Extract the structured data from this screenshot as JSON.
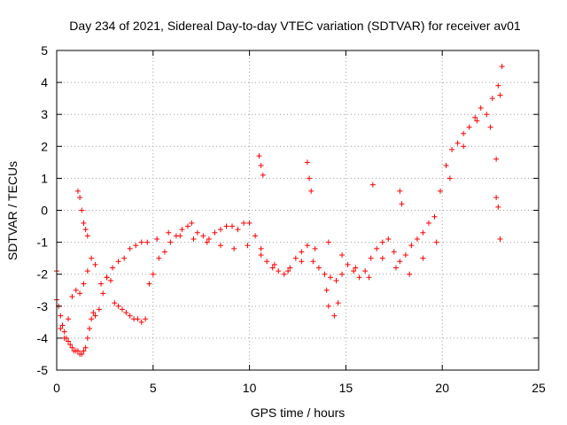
{
  "chart_data": {
    "type": "scatter",
    "title": "Day 234 of 2021, Sidereal Day-to-day VTEC variation (SDTVAR) for receiver av01",
    "xlabel": "GPS time / hours",
    "ylabel": "SDTVAR / TECUs",
    "xlim": [
      0,
      25
    ],
    "ylim": [
      -5,
      5
    ],
    "x_ticks": [
      0,
      5,
      10,
      15,
      20,
      25
    ],
    "x_tick_labels": [
      "0",
      "5",
      "10",
      "15",
      "20",
      "25"
    ],
    "y_ticks": [
      -5,
      -4,
      -3,
      -2,
      -1,
      0,
      1,
      2,
      3,
      4,
      5
    ],
    "y_tick_labels": [
      "-5",
      "-4",
      "-3",
      "-2",
      "-1",
      "0",
      "1",
      "2",
      "3",
      "4",
      "5"
    ],
    "grid": true,
    "marker": "+",
    "color": "#ff0000",
    "series": [
      {
        "name": "SDTVAR",
        "x": [
          0.0,
          0.1,
          0.2,
          0.3,
          0.4,
          0.5,
          0.6,
          0.7,
          0.8,
          0.9,
          1.0,
          1.1,
          1.2,
          1.3,
          1.4,
          1.5,
          1.6,
          1.7,
          1.8,
          1.9,
          2.0,
          2.2,
          2.4,
          2.6,
          2.8,
          3.0,
          3.2,
          3.4,
          3.6,
          3.8,
          4.0,
          4.2,
          4.4,
          4.6,
          4.8,
          5.0,
          5.3,
          5.6,
          5.9,
          6.2,
          6.5,
          6.8,
          7.0,
          7.3,
          7.6,
          7.9,
          8.2,
          8.5,
          8.8,
          9.1,
          9.4,
          9.7,
          10.0,
          10.3,
          10.6,
          10.9,
          11.2,
          11.5,
          11.8,
          12.1,
          12.4,
          12.7,
          13.0,
          13.3,
          13.6,
          13.9,
          14.2,
          14.5,
          14.8,
          15.1,
          15.4,
          15.7,
          16.0,
          16.3,
          16.6,
          16.9,
          17.2,
          17.5,
          17.8,
          18.1,
          18.4,
          18.7,
          19.0,
          19.3,
          19.6,
          19.9,
          20.2,
          20.5,
          20.8,
          21.1,
          21.4,
          21.7,
          22.0,
          22.3,
          22.6,
          22.9,
          23.1,
          0.0,
          0.2,
          0.4,
          0.6,
          0.8,
          1.0,
          1.2,
          1.4,
          1.6,
          1.8,
          2.0,
          2.3,
          2.6,
          2.9,
          3.2,
          3.5,
          3.8,
          4.1,
          4.4,
          4.7,
          5.2,
          5.8,
          6.4,
          7.1,
          7.8,
          8.5,
          9.2,
          9.9,
          10.6,
          11.3,
          12.0,
          12.7,
          13.4,
          14.1,
          14.8,
          15.5,
          16.2,
          16.9,
          17.6,
          18.3,
          19.0,
          19.7,
          20.4,
          21.1,
          21.8,
          22.5,
          23.0,
          1.1,
          1.2,
          1.3,
          1.4,
          1.5,
          1.6,
          10.5,
          10.6,
          10.7,
          13.0,
          13.1,
          13.2,
          14.0,
          14.1,
          14.4,
          14.6,
          16.4,
          17.8,
          17.9,
          22.8,
          22.8,
          22.9,
          23.0
        ],
        "y": [
          -2.8,
          -3.0,
          -3.3,
          -3.6,
          -3.8,
          -4.0,
          -4.1,
          -4.2,
          -4.3,
          -4.4,
          -4.4,
          -4.4,
          -4.5,
          -4.5,
          -4.4,
          -4.3,
          -4.0,
          -3.7,
          -3.4,
          -3.2,
          -3.3,
          -3.1,
          -2.6,
          -2.1,
          -2.2,
          -2.9,
          -3.0,
          -3.1,
          -3.2,
          -3.3,
          -3.4,
          -3.4,
          -3.5,
          -3.4,
          -2.3,
          -2.0,
          -1.5,
          -1.3,
          -1.0,
          -0.8,
          -0.6,
          -0.5,
          -0.4,
          -0.7,
          -0.8,
          -0.9,
          -0.7,
          -0.6,
          -0.5,
          -0.5,
          -0.6,
          -0.4,
          -0.4,
          -0.8,
          -1.2,
          -1.6,
          -1.8,
          -1.9,
          -2.0,
          -1.8,
          -1.5,
          -1.3,
          -1.1,
          -1.6,
          -1.8,
          -2.0,
          -2.1,
          -2.2,
          -2.0,
          -1.7,
          -1.9,
          -2.1,
          -1.9,
          -1.5,
          -1.2,
          -1.0,
          -0.9,
          -1.3,
          -1.6,
          -1.4,
          -1.1,
          -0.9,
          -0.7,
          -0.4,
          -0.2,
          0.6,
          1.4,
          1.9,
          2.1,
          2.4,
          2.6,
          2.9,
          3.2,
          3.0,
          3.5,
          3.9,
          4.5,
          -1.9,
          -3.7,
          -4.0,
          -3.4,
          -2.7,
          -2.5,
          -2.6,
          -2.3,
          -1.9,
          -1.5,
          -1.7,
          -2.3,
          -2.1,
          -1.8,
          -1.6,
          -1.5,
          -1.2,
          -1.1,
          -1.0,
          -1.0,
          -0.9,
          -0.7,
          -0.8,
          -0.9,
          -1.0,
          -1.1,
          -1.2,
          -1.1,
          -1.4,
          -1.7,
          -1.9,
          -1.6,
          -1.2,
          -1.0,
          -1.4,
          -1.8,
          -2.1,
          -1.5,
          -1.8,
          -2.0,
          -1.5,
          -1.0,
          1.0,
          2.0,
          2.8,
          2.6,
          3.6,
          0.6,
          0.4,
          0.0,
          -0.4,
          -0.6,
          -0.8,
          1.7,
          1.4,
          1.1,
          1.5,
          1.0,
          0.6,
          -2.5,
          -3.0,
          -3.3,
          -2.9,
          0.8,
          0.6,
          0.2,
          1.6,
          0.4,
          0.1,
          -0.9
        ]
      }
    ]
  }
}
